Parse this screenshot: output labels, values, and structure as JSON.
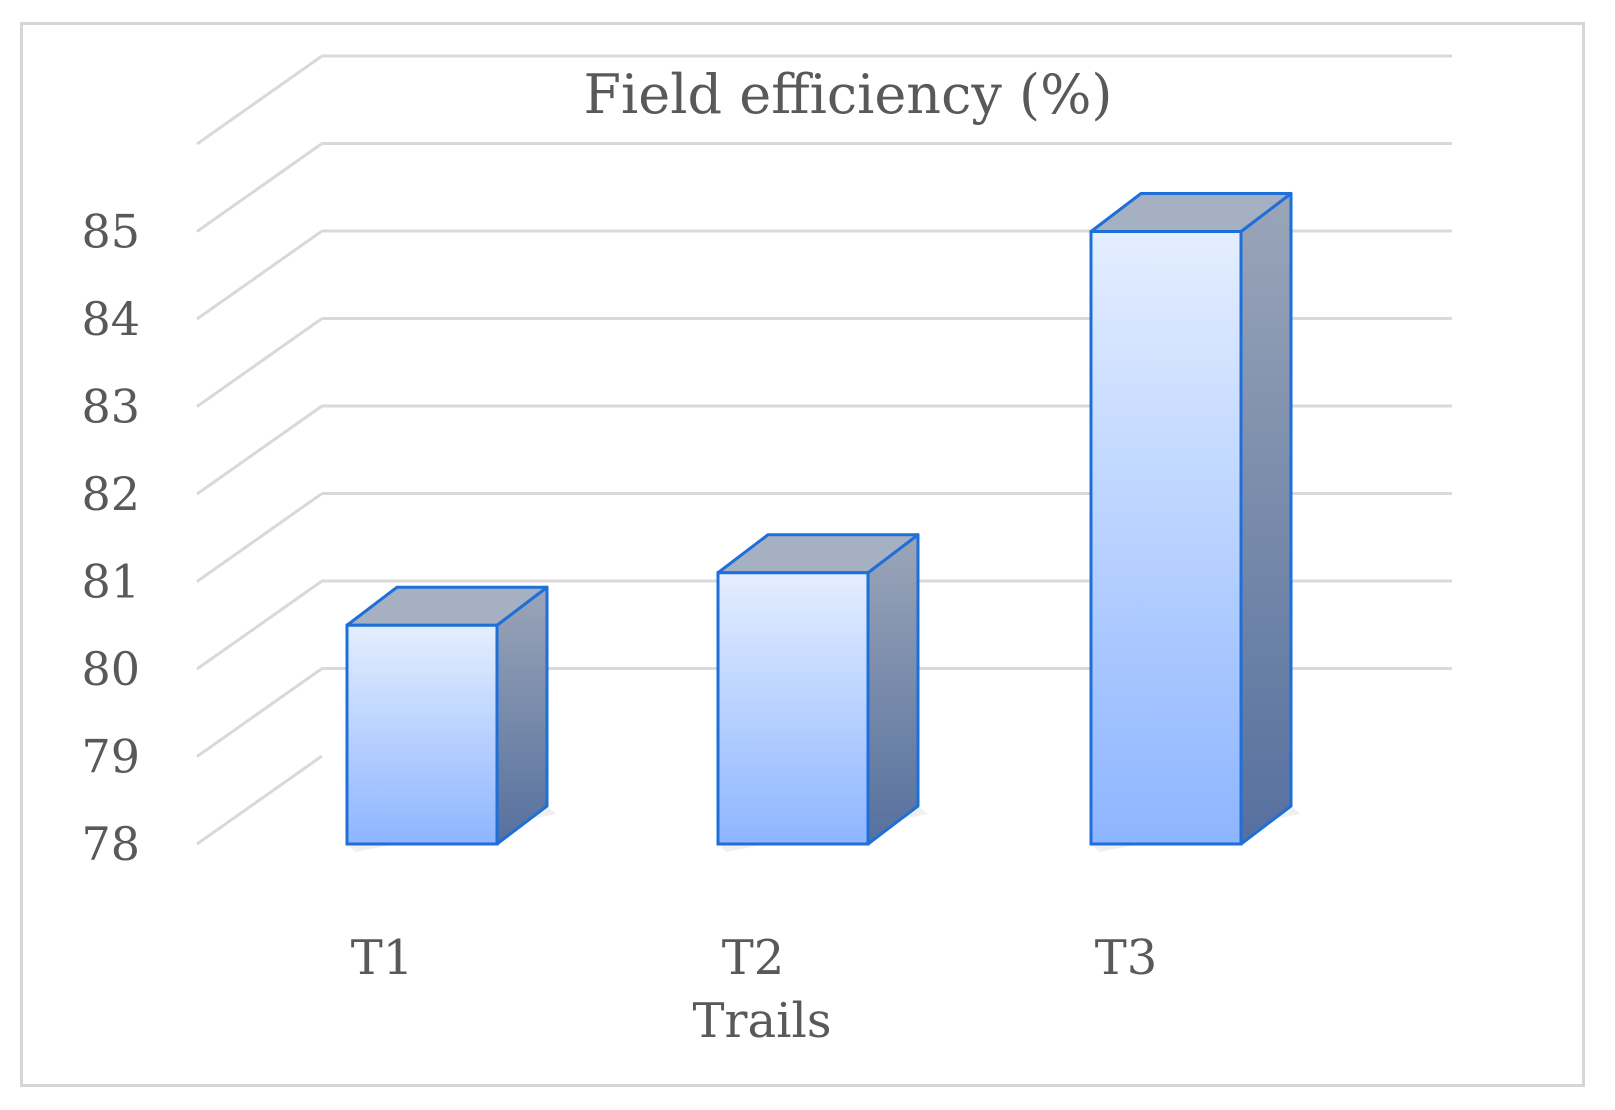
{
  "chart_data": {
    "type": "bar",
    "title": "Field efficiency (%)",
    "xlabel": "Trails",
    "ylabel": "",
    "categories": [
      "T1",
      "T2",
      "T3"
    ],
    "values": [
      80.5,
      81.1,
      85.0
    ],
    "ylim": [
      78,
      85
    ],
    "yticks": [
      "78",
      "79",
      "80",
      "81",
      "82",
      "83",
      "84",
      "85"
    ],
    "grid": true,
    "legend": "none",
    "style": "3d-column"
  },
  "colors": {
    "front_top": "#e4eeff",
    "front_bottom": "#8db5ff",
    "side_top": "#9aa5b8",
    "side_bottom": "#56709e",
    "top_face": "#a6b0c3",
    "edge": "#1f6fd8",
    "grid": "#d9d9d9",
    "text": "#595959"
  }
}
